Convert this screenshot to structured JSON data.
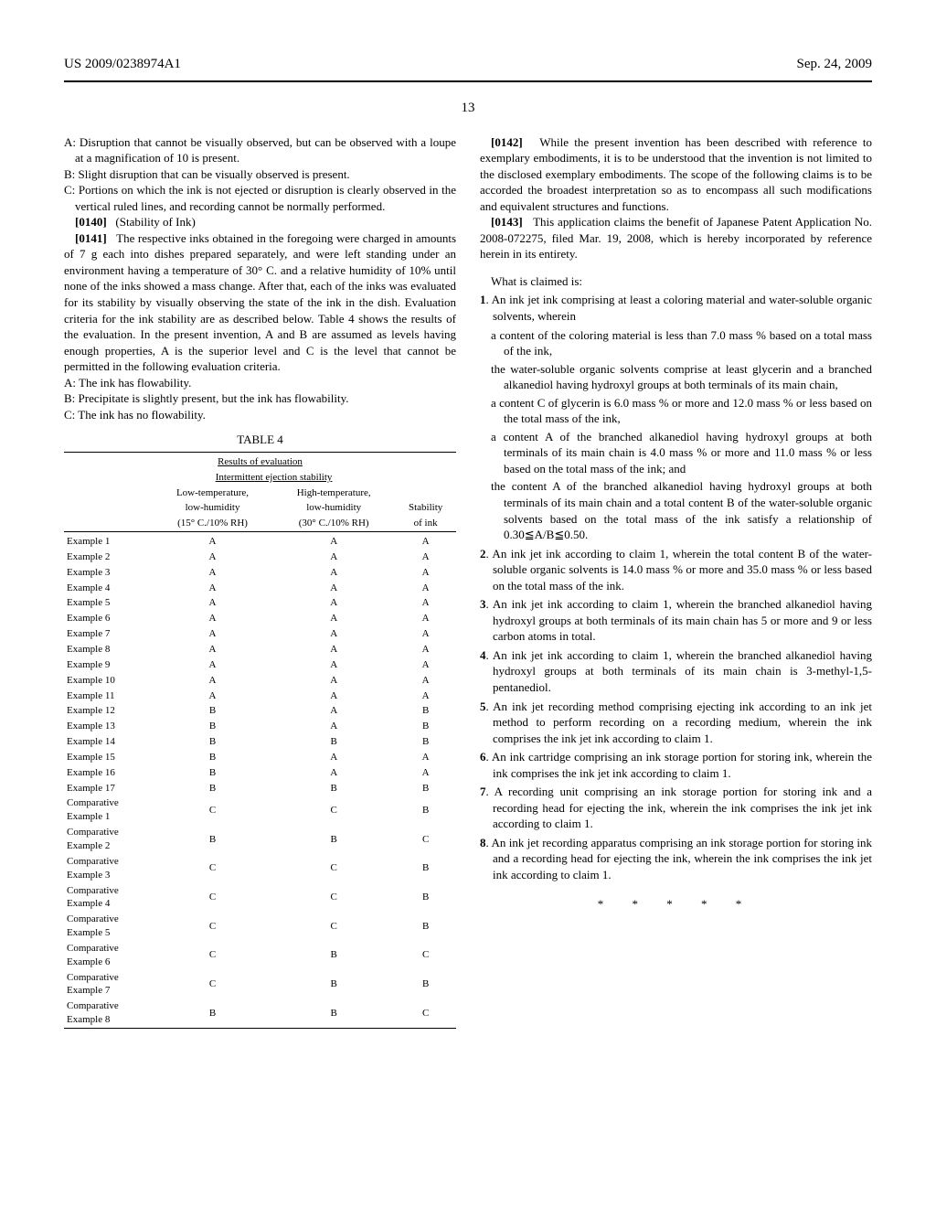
{
  "header": {
    "left": "US 2009/0238974A1",
    "right": "Sep. 24, 2009"
  },
  "page_number": "13",
  "left_col": {
    "grading": {
      "a": "A: Disruption that cannot be visually observed, but can be observed with a loupe at a magnification of 10 is present.",
      "b": "B: Slight disruption that can be visually observed is present.",
      "c": "C: Portions on which the ink is not ejected or disruption is clearly observed in the vertical ruled lines, and recording cannot be normally performed."
    },
    "p0140_label": "[0140]",
    "p0140_title": "(Stability of Ink)",
    "p0141_label": "[0141]",
    "p0141_text": "The respective inks obtained in the foregoing were charged in amounts of 7 g each into dishes prepared separately, and were left standing under an environment having a temperature of 30° C. and a relative humidity of 10% until none of the inks showed a mass change. After that, each of the inks was evaluated for its stability by visually observing the state of the ink in the dish. Evaluation criteria for the ink stability are as described below. Table 4 shows the results of the evaluation. In the present invention, A and B are assumed as levels having enough properties, A is the superior level and C is the level that cannot be permitted in the following evaluation criteria.",
    "stability": {
      "a": "A: The ink has flowability.",
      "b": "B: Precipitate is slightly present, but the ink has flowability.",
      "c": "C: The ink has no flowability."
    },
    "table": {
      "title": "TABLE 4",
      "caption": "Results of evaluation",
      "subcaption": "Intermittent ejection stability",
      "headers": {
        "col1_l1": "Low-temperature,",
        "col1_l2": "low-humidity",
        "col1_l3": "(15° C./10% RH)",
        "col2_l1": "High-temperature,",
        "col2_l2": "low-humidity",
        "col2_l3": "(30° C./10% RH)",
        "col3_l1": "Stability",
        "col3_l2": "of ink"
      },
      "rows": [
        {
          "name": "Example 1",
          "c1": "A",
          "c2": "A",
          "c3": "A"
        },
        {
          "name": "Example 2",
          "c1": "A",
          "c2": "A",
          "c3": "A"
        },
        {
          "name": "Example 3",
          "c1": "A",
          "c2": "A",
          "c3": "A"
        },
        {
          "name": "Example 4",
          "c1": "A",
          "c2": "A",
          "c3": "A"
        },
        {
          "name": "Example 5",
          "c1": "A",
          "c2": "A",
          "c3": "A"
        },
        {
          "name": "Example 6",
          "c1": "A",
          "c2": "A",
          "c3": "A"
        },
        {
          "name": "Example 7",
          "c1": "A",
          "c2": "A",
          "c3": "A"
        },
        {
          "name": "Example 8",
          "c1": "A",
          "c2": "A",
          "c3": "A"
        },
        {
          "name": "Example 9",
          "c1": "A",
          "c2": "A",
          "c3": "A"
        },
        {
          "name": "Example 10",
          "c1": "A",
          "c2": "A",
          "c3": "A"
        },
        {
          "name": "Example 11",
          "c1": "A",
          "c2": "A",
          "c3": "A"
        },
        {
          "name": "Example 12",
          "c1": "B",
          "c2": "A",
          "c3": "B"
        },
        {
          "name": "Example 13",
          "c1": "B",
          "c2": "A",
          "c3": "B"
        },
        {
          "name": "Example 14",
          "c1": "B",
          "c2": "B",
          "c3": "B"
        },
        {
          "name": "Example 15",
          "c1": "B",
          "c2": "A",
          "c3": "A"
        },
        {
          "name": "Example 16",
          "c1": "B",
          "c2": "A",
          "c3": "A"
        },
        {
          "name": "Example 17",
          "c1": "B",
          "c2": "B",
          "c3": "B"
        },
        {
          "name": "Comparative Example 1",
          "c1": "C",
          "c2": "C",
          "c3": "B"
        },
        {
          "name": "Comparative Example 2",
          "c1": "B",
          "c2": "B",
          "c3": "C"
        },
        {
          "name": "Comparative Example 3",
          "c1": "C",
          "c2": "C",
          "c3": "B"
        },
        {
          "name": "Comparative Example 4",
          "c1": "C",
          "c2": "C",
          "c3": "B"
        },
        {
          "name": "Comparative Example 5",
          "c1": "C",
          "c2": "C",
          "c3": "B"
        },
        {
          "name": "Comparative Example 6",
          "c1": "C",
          "c2": "B",
          "c3": "C"
        },
        {
          "name": "Comparative Example 7",
          "c1": "C",
          "c2": "B",
          "c3": "B"
        },
        {
          "name": "Comparative Example 8",
          "c1": "B",
          "c2": "B",
          "c3": "C"
        }
      ]
    }
  },
  "right_col": {
    "p0142_label": "[0142]",
    "p0142_text": "While the present invention has been described with reference to exemplary embodiments, it is to be understood that the invention is not limited to the disclosed exemplary embodiments. The scope of the following claims is to be accorded the broadest interpretation so as to encompass all such modifications and equivalent structures and functions.",
    "p0143_label": "[0143]",
    "p0143_text": "This application claims the benefit of Japanese Patent Application No. 2008-072275, filed Mar. 19, 2008, which is hereby incorporated by reference herein in its entirety.",
    "what_is_claimed": "What is claimed is:",
    "claims": {
      "c1": {
        "num": "1",
        "intro": ". An ink jet ink comprising at least a coloring material and water-soluble organic solvents, wherein",
        "sub1": "a content of the coloring material is less than 7.0 mass % based on a total mass of the ink,",
        "sub2": "the water-soluble organic solvents comprise at least glycerin and a branched alkanediol having hydroxyl groups at both terminals of its main chain,",
        "sub3": "a content C of glycerin is 6.0 mass % or more and 12.0 mass % or less based on the total mass of the ink,",
        "sub4": "a content A of the branched alkanediol having hydroxyl groups at both terminals of its main chain is 4.0 mass % or more and 11.0 mass % or less based on the total mass of the ink; and",
        "sub5": "the content A of the branched alkanediol having hydroxyl groups at both terminals of its main chain and a total content B of the water-soluble organic solvents based on the total mass of the ink satisfy a relationship of 0.30≦A/B≦0.50."
      },
      "c2": {
        "num": "2",
        "text": ". An ink jet ink according to claim 1, wherein the total content B of the water-soluble organic solvents is 14.0 mass % or more and 35.0 mass % or less based on the total mass of the ink."
      },
      "c3": {
        "num": "3",
        "text": ". An ink jet ink according to claim 1, wherein the branched alkanediol having hydroxyl groups at both terminals of its main chain has 5 or more and 9 or less carbon atoms in total."
      },
      "c4": {
        "num": "4",
        "text": ". An ink jet ink according to claim 1, wherein the branched alkanediol having hydroxyl groups at both terminals of its main chain is 3-methyl-1,5-pentanediol."
      },
      "c5": {
        "num": "5",
        "text": ". An ink jet recording method comprising ejecting ink according to an ink jet method to perform recording on a recording medium, wherein the ink comprises the ink jet ink according to claim 1."
      },
      "c6": {
        "num": "6",
        "text": ". An ink cartridge comprising an ink storage portion for storing ink, wherein the ink comprises the ink jet ink according to claim 1."
      },
      "c7": {
        "num": "7",
        "text": ". A recording unit comprising an ink storage portion for storing ink and a recording head for ejecting the ink, wherein the ink comprises the ink jet ink according to claim 1."
      },
      "c8": {
        "num": "8",
        "text": ". An ink jet recording apparatus comprising an ink storage portion for storing ink and a recording head for ejecting the ink, wherein the ink comprises the ink jet ink according to claim 1."
      }
    },
    "stars": "* * * * *"
  }
}
